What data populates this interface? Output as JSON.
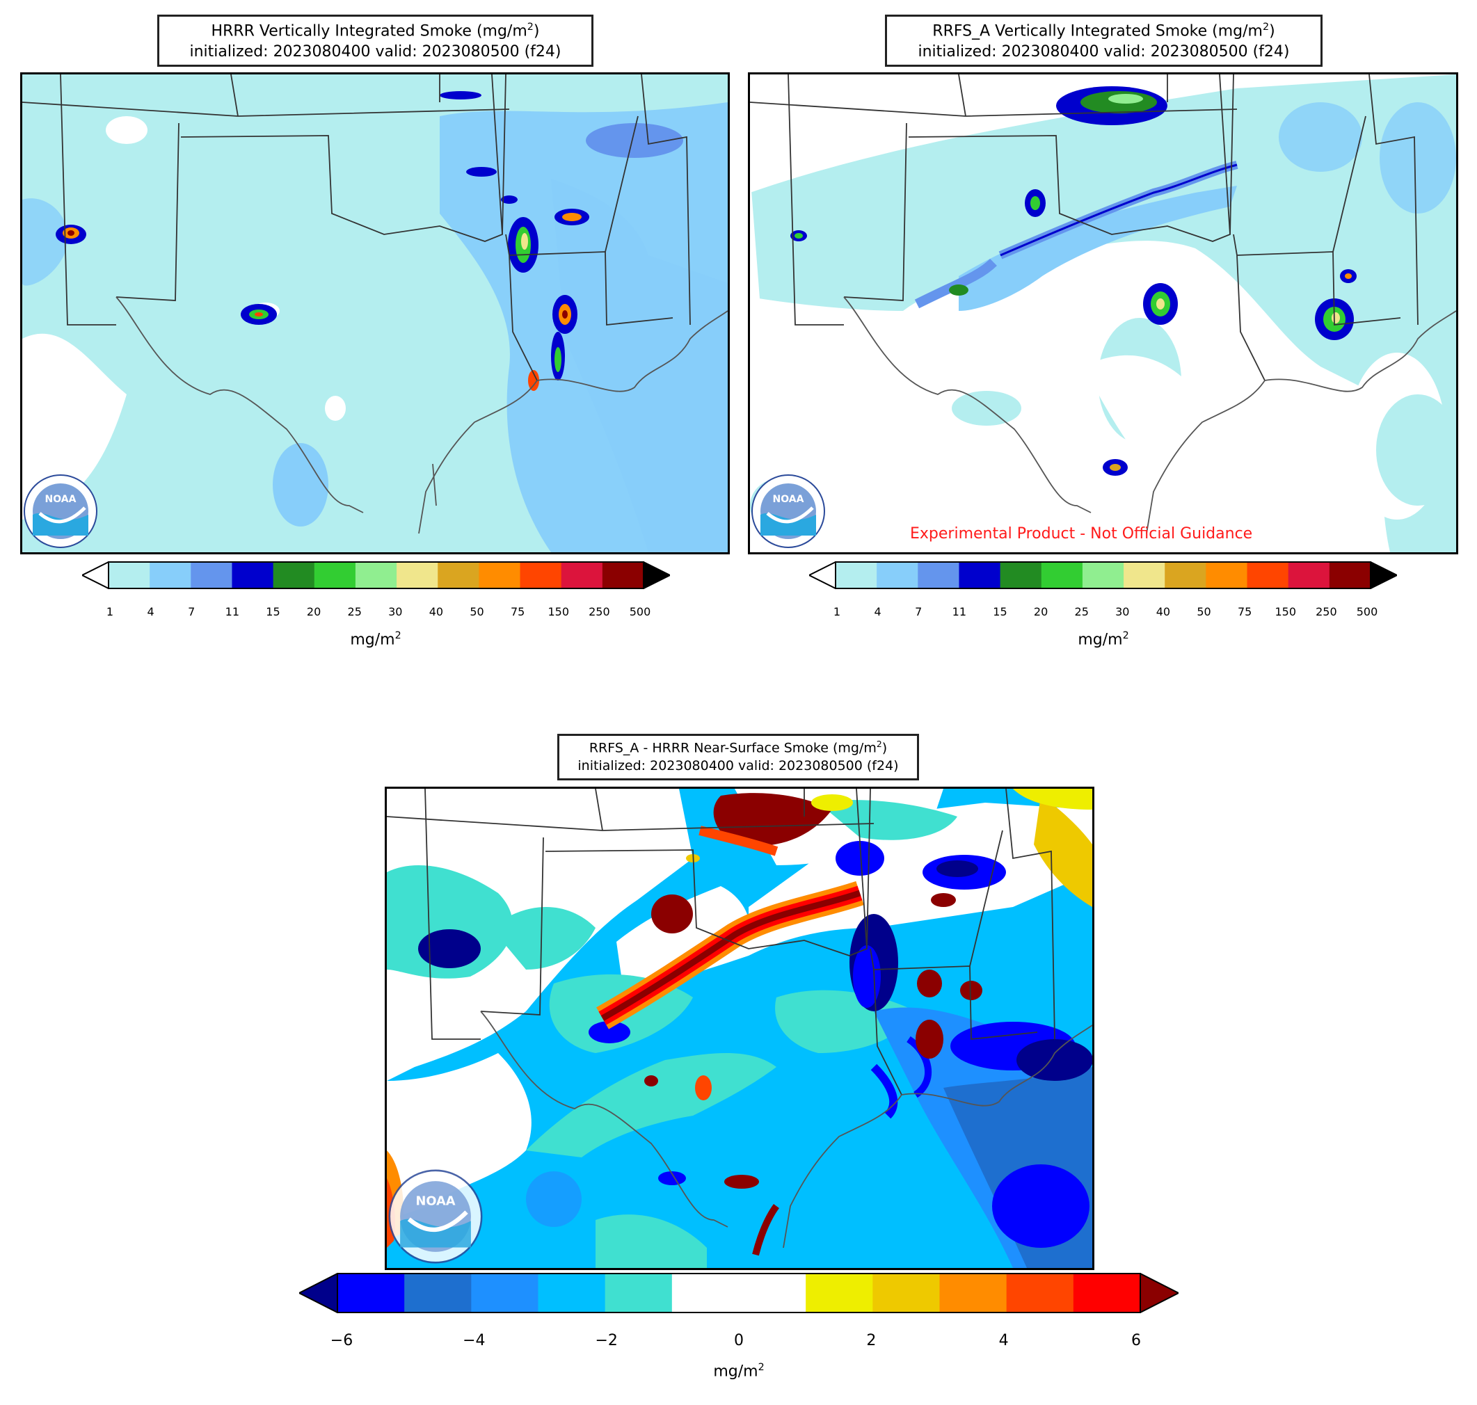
{
  "panels": [
    {
      "id": "hrrr",
      "title_line1_prefix": "HRRR Vertically Integrated Smoke (mg/m",
      "title_sup": "2",
      "title_line1_suffix": ")",
      "title_line2": "initialized: 2023080400 valid: 2023080500 (f24)"
    },
    {
      "id": "rrfs",
      "title_line1_prefix": "RRFS_A Vertically Integrated Smoke (mg/m",
      "title_sup": "2",
      "title_line1_suffix": ")",
      "title_line2": "initialized: 2023080400 valid: 2023080500 (f24)",
      "note": "Experimental Product - Not Official Guidance"
    },
    {
      "id": "diff",
      "title_line1_prefix": "RRFS_A - HRRR Near-Surface Smoke (mg/m",
      "title_sup": "2",
      "title_line1_suffix": ")",
      "title_line2": "initialized: 2023080400 valid: 2023080500 (f24)"
    }
  ],
  "colorbar_smoke": {
    "ticks": [
      "1",
      "4",
      "7",
      "11",
      "15",
      "20",
      "25",
      "30",
      "40",
      "50",
      "75",
      "150",
      "250",
      "500"
    ],
    "colors": [
      "#b4eeef",
      "#87cefa",
      "#6495ed",
      "#0000cd",
      "#228b22",
      "#32cd32",
      "#90ee90",
      "#f0e68c",
      "#daa520",
      "#ff8c00",
      "#ff4500",
      "#dc143c",
      "#8b0000"
    ],
    "under_color": "#ffffff",
    "over_color": "#000000",
    "unit_prefix": "mg/m",
    "unit_sup": "2"
  },
  "colorbar_diff": {
    "ticks": [
      "−6",
      "−4",
      "−2",
      "0",
      "2",
      "4",
      "6"
    ],
    "colors": [
      "#0000ff",
      "#1e6fcf",
      "#1e90ff",
      "#00bfff",
      "#40e0d0",
      "#ffffff",
      "#ffffff",
      "#eeee00",
      "#eec900",
      "#ff8c00",
      "#ff4500",
      "#ff0000"
    ],
    "under_color": "#00008b",
    "over_color": "#8b0000",
    "unit_prefix": "mg/m",
    "unit_sup": "2"
  },
  "logo": {
    "name": "noaa-logo",
    "text": "NOAA"
  },
  "colors": {
    "frame": "#000000",
    "border": "#333333",
    "coast": "#666666"
  }
}
